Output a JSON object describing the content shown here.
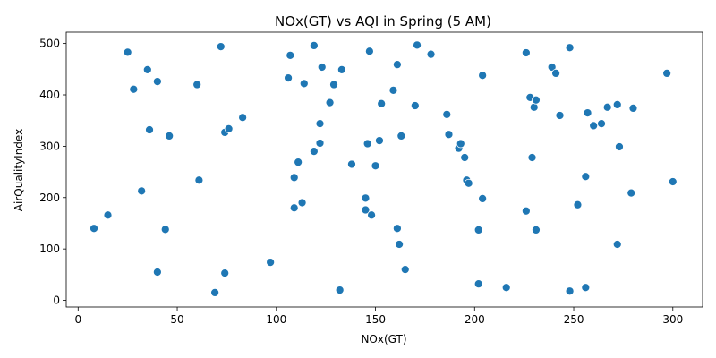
{
  "chart_data": {
    "type": "scatter",
    "title": "NOx(GT) vs AQI in Spring (5 AM)",
    "xlabel": "NOx(GT)",
    "ylabel": "AirQualityIndex",
    "xlim": [
      -6,
      315
    ],
    "ylim": [
      -13,
      522
    ],
    "xticks": [
      0,
      50,
      100,
      150,
      200,
      250,
      300
    ],
    "yticks": [
      0,
      100,
      200,
      300,
      400,
      500
    ],
    "grid": false,
    "legend": "none",
    "color": "#1f77b4",
    "points": [
      {
        "x": 8,
        "y": 140
      },
      {
        "x": 15,
        "y": 166
      },
      {
        "x": 25,
        "y": 483
      },
      {
        "x": 28,
        "y": 411
      },
      {
        "x": 32,
        "y": 213
      },
      {
        "x": 35,
        "y": 449
      },
      {
        "x": 36,
        "y": 332
      },
      {
        "x": 40,
        "y": 55
      },
      {
        "x": 40,
        "y": 426
      },
      {
        "x": 44,
        "y": 138
      },
      {
        "x": 46,
        "y": 320
      },
      {
        "x": 60,
        "y": 420
      },
      {
        "x": 61,
        "y": 234
      },
      {
        "x": 69,
        "y": 15
      },
      {
        "x": 72,
        "y": 494
      },
      {
        "x": 74,
        "y": 53
      },
      {
        "x": 74,
        "y": 327
      },
      {
        "x": 76,
        "y": 334
      },
      {
        "x": 83,
        "y": 356
      },
      {
        "x": 97,
        "y": 74
      },
      {
        "x": 106,
        "y": 433
      },
      {
        "x": 107,
        "y": 477
      },
      {
        "x": 109,
        "y": 180
      },
      {
        "x": 109,
        "y": 239
      },
      {
        "x": 111,
        "y": 269
      },
      {
        "x": 113,
        "y": 190
      },
      {
        "x": 114,
        "y": 422
      },
      {
        "x": 119,
        "y": 496
      },
      {
        "x": 119,
        "y": 290
      },
      {
        "x": 122,
        "y": 344
      },
      {
        "x": 122,
        "y": 306
      },
      {
        "x": 123,
        "y": 454
      },
      {
        "x": 127,
        "y": 385
      },
      {
        "x": 129,
        "y": 420
      },
      {
        "x": 132,
        "y": 20
      },
      {
        "x": 133,
        "y": 449
      },
      {
        "x": 138,
        "y": 265
      },
      {
        "x": 145,
        "y": 199
      },
      {
        "x": 145,
        "y": 176
      },
      {
        "x": 146,
        "y": 305
      },
      {
        "x": 147,
        "y": 485
      },
      {
        "x": 148,
        "y": 166
      },
      {
        "x": 150,
        "y": 262
      },
      {
        "x": 152,
        "y": 311
      },
      {
        "x": 153,
        "y": 383
      },
      {
        "x": 159,
        "y": 409
      },
      {
        "x": 161,
        "y": 459
      },
      {
        "x": 161,
        "y": 140
      },
      {
        "x": 162,
        "y": 109
      },
      {
        "x": 163,
        "y": 320
      },
      {
        "x": 165,
        "y": 60
      },
      {
        "x": 170,
        "y": 379
      },
      {
        "x": 171,
        "y": 497
      },
      {
        "x": 178,
        "y": 479
      },
      {
        "x": 186,
        "y": 362
      },
      {
        "x": 187,
        "y": 323
      },
      {
        "x": 192,
        "y": 296
      },
      {
        "x": 193,
        "y": 305
      },
      {
        "x": 195,
        "y": 278
      },
      {
        "x": 196,
        "y": 234
      },
      {
        "x": 197,
        "y": 228
      },
      {
        "x": 202,
        "y": 32
      },
      {
        "x": 202,
        "y": 137
      },
      {
        "x": 204,
        "y": 438
      },
      {
        "x": 204,
        "y": 198
      },
      {
        "x": 216,
        "y": 25
      },
      {
        "x": 226,
        "y": 482
      },
      {
        "x": 226,
        "y": 174
      },
      {
        "x": 228,
        "y": 395
      },
      {
        "x": 229,
        "y": 278
      },
      {
        "x": 230,
        "y": 376
      },
      {
        "x": 231,
        "y": 390
      },
      {
        "x": 231,
        "y": 137
      },
      {
        "x": 239,
        "y": 454
      },
      {
        "x": 241,
        "y": 442
      },
      {
        "x": 243,
        "y": 360
      },
      {
        "x": 248,
        "y": 492
      },
      {
        "x": 248,
        "y": 18
      },
      {
        "x": 252,
        "y": 186
      },
      {
        "x": 256,
        "y": 25
      },
      {
        "x": 256,
        "y": 241
      },
      {
        "x": 257,
        "y": 365
      },
      {
        "x": 260,
        "y": 340
      },
      {
        "x": 264,
        "y": 344
      },
      {
        "x": 267,
        "y": 376
      },
      {
        "x": 272,
        "y": 381
      },
      {
        "x": 272,
        "y": 109
      },
      {
        "x": 273,
        "y": 299
      },
      {
        "x": 279,
        "y": 209
      },
      {
        "x": 280,
        "y": 374
      },
      {
        "x": 297,
        "y": 442
      },
      {
        "x": 300,
        "y": 231
      }
    ]
  }
}
